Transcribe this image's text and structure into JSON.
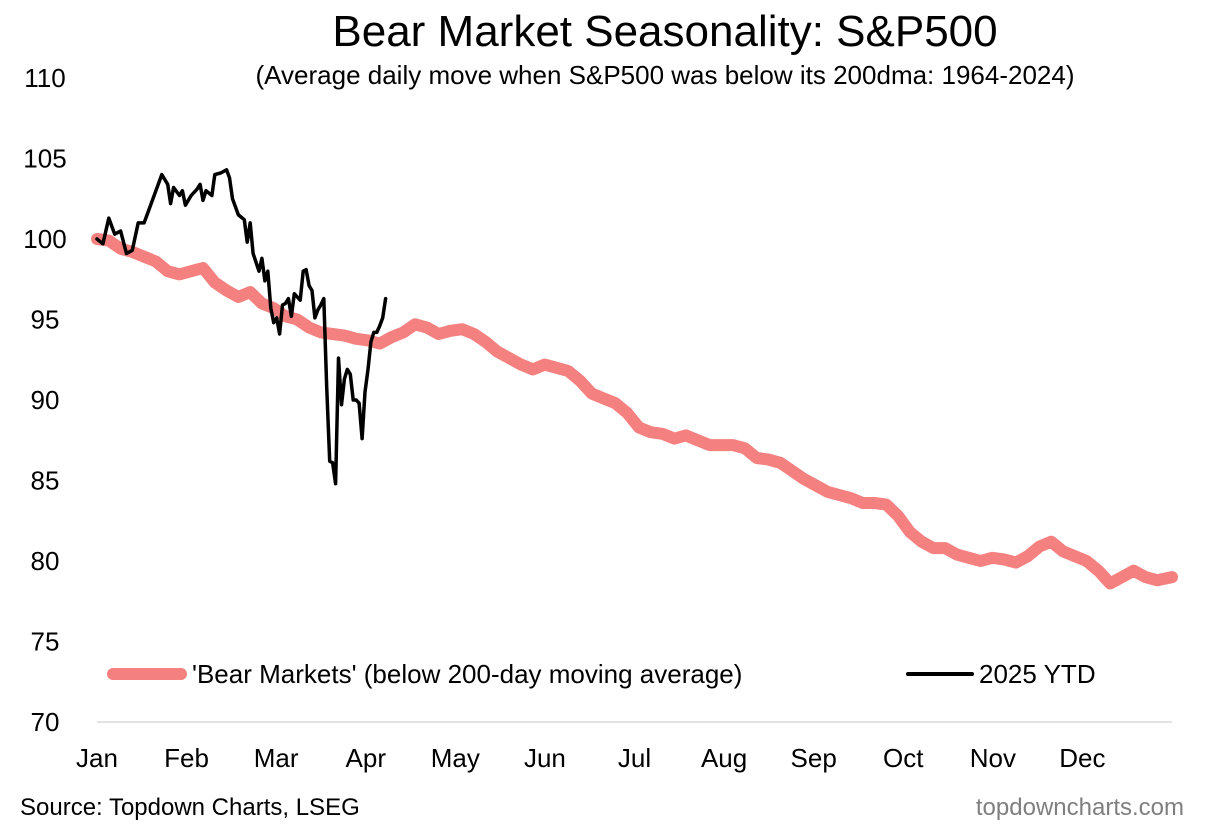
{
  "chart_data": {
    "type": "line",
    "title": "Bear Market Seasonality: S&P500",
    "subtitle": "(Average daily move when S&P500 was below its 200dma: 1964-2024)",
    "xlabel": "",
    "ylabel": "",
    "ylim": [
      70,
      110
    ],
    "yticks": [
      "70",
      "75",
      "80",
      "85",
      "90",
      "95",
      "100",
      "105",
      "110"
    ],
    "xticks": [
      "Jan",
      "Feb",
      "Mar",
      "Apr",
      "May",
      "Jun",
      "Jul",
      "Aug",
      "Sep",
      "Oct",
      "Nov",
      "Dec"
    ],
    "x_unit": "day of year (0 = Jan 1)",
    "xlim": [
      0,
      365
    ],
    "grid": false,
    "legend_position": "bottom",
    "series": [
      {
        "name": "'Bear Markets' (below 200-day moving average)",
        "color": "#f4817f",
        "style": "thick",
        "points": [
          [
            0,
            100
          ],
          [
            4,
            99.9
          ],
          [
            8,
            99.4
          ],
          [
            12,
            99.2
          ],
          [
            16,
            98.9
          ],
          [
            20,
            98.6
          ],
          [
            24,
            98.0
          ],
          [
            28,
            97.8
          ],
          [
            32,
            98.0
          ],
          [
            36,
            98.2
          ],
          [
            40,
            97.3
          ],
          [
            44,
            96.8
          ],
          [
            48,
            96.4
          ],
          [
            52,
            96.7
          ],
          [
            56,
            96.0
          ],
          [
            60,
            95.7
          ],
          [
            64,
            95.2
          ],
          [
            68,
            95.0
          ],
          [
            72,
            94.5
          ],
          [
            76,
            94.2
          ],
          [
            80,
            94.1
          ],
          [
            84,
            94.0
          ],
          [
            88,
            93.8
          ],
          [
            92,
            93.7
          ],
          [
            96,
            93.5
          ],
          [
            100,
            93.9
          ],
          [
            104,
            94.2
          ],
          [
            108,
            94.7
          ],
          [
            112,
            94.5
          ],
          [
            116,
            94.1
          ],
          [
            120,
            94.3
          ],
          [
            124,
            94.4
          ],
          [
            128,
            94.1
          ],
          [
            132,
            93.6
          ],
          [
            136,
            93.0
          ],
          [
            140,
            92.6
          ],
          [
            144,
            92.2
          ],
          [
            148,
            91.9
          ],
          [
            152,
            92.2
          ],
          [
            156,
            92.0
          ],
          [
            160,
            91.8
          ],
          [
            164,
            91.2
          ],
          [
            168,
            90.4
          ],
          [
            172,
            90.1
          ],
          [
            176,
            89.8
          ],
          [
            180,
            89.2
          ],
          [
            184,
            88.3
          ],
          [
            188,
            88.0
          ],
          [
            192,
            87.9
          ],
          [
            196,
            87.6
          ],
          [
            200,
            87.8
          ],
          [
            204,
            87.5
          ],
          [
            208,
            87.2
          ],
          [
            212,
            87.2
          ],
          [
            216,
            87.2
          ],
          [
            220,
            87.0
          ],
          [
            224,
            86.4
          ],
          [
            228,
            86.3
          ],
          [
            232,
            86.1
          ],
          [
            236,
            85.6
          ],
          [
            240,
            85.1
          ],
          [
            244,
            84.7
          ],
          [
            248,
            84.3
          ],
          [
            252,
            84.1
          ],
          [
            256,
            83.9
          ],
          [
            260,
            83.6
          ],
          [
            264,
            83.6
          ],
          [
            268,
            83.5
          ],
          [
            272,
            82.8
          ],
          [
            276,
            81.8
          ],
          [
            280,
            81.2
          ],
          [
            284,
            80.8
          ],
          [
            288,
            80.8
          ],
          [
            292,
            80.4
          ],
          [
            296,
            80.2
          ],
          [
            300,
            80.0
          ],
          [
            304,
            80.2
          ],
          [
            308,
            80.1
          ],
          [
            312,
            79.9
          ],
          [
            316,
            80.3
          ],
          [
            320,
            80.9
          ],
          [
            324,
            81.2
          ],
          [
            328,
            80.6
          ],
          [
            332,
            80.3
          ],
          [
            336,
            80.0
          ],
          [
            340,
            79.4
          ],
          [
            344,
            78.6
          ],
          [
            348,
            79.0
          ],
          [
            352,
            79.4
          ],
          [
            356,
            79.0
          ],
          [
            360,
            78.8
          ],
          [
            365,
            79.0
          ]
        ]
      },
      {
        "name": "2025 YTD",
        "color": "#000000",
        "style": "thin",
        "points": [
          [
            0,
            100
          ],
          [
            2,
            99.7
          ],
          [
            4,
            101.3
          ],
          [
            6,
            100.3
          ],
          [
            8,
            100.5
          ],
          [
            10,
            99.1
          ],
          [
            12,
            99.3
          ],
          [
            14,
            101.0
          ],
          [
            16,
            101.0
          ],
          [
            18,
            102.0
          ],
          [
            20,
            103.0
          ],
          [
            22,
            104.0
          ],
          [
            24,
            103.4
          ],
          [
            25,
            102.2
          ],
          [
            26,
            103.2
          ],
          [
            28,
            102.7
          ],
          [
            29,
            103.0
          ],
          [
            30,
            102.1
          ],
          [
            32,
            102.7
          ],
          [
            34,
            103.1
          ],
          [
            35,
            103.4
          ],
          [
            36,
            102.4
          ],
          [
            37,
            103.0
          ],
          [
            39,
            102.7
          ],
          [
            40,
            104.0
          ],
          [
            42,
            104.1
          ],
          [
            44,
            104.3
          ],
          [
            45,
            103.8
          ],
          [
            46,
            102.5
          ],
          [
            48,
            101.5
          ],
          [
            50,
            101.2
          ],
          [
            51,
            99.8
          ],
          [
            52,
            101.0
          ],
          [
            53,
            99.1
          ],
          [
            55,
            98.0
          ],
          [
            56,
            98.8
          ],
          [
            57,
            97.4
          ],
          [
            58,
            98.0
          ],
          [
            59,
            95.7
          ],
          [
            60,
            94.8
          ],
          [
            61,
            95.1
          ],
          [
            62,
            94.1
          ],
          [
            63,
            95.9
          ],
          [
            64,
            96.0
          ],
          [
            65,
            96.3
          ],
          [
            66,
            95.2
          ],
          [
            67,
            96.6
          ],
          [
            68,
            96.4
          ],
          [
            69,
            96.2
          ],
          [
            70,
            98.0
          ],
          [
            71,
            98.1
          ],
          [
            72,
            97.1
          ],
          [
            73,
            96.8
          ],
          [
            74,
            95.1
          ],
          [
            75,
            95.6
          ],
          [
            76,
            95.9
          ],
          [
            77,
            96.3
          ],
          [
            78,
            90.8
          ],
          [
            79,
            86.2
          ],
          [
            80,
            86.1
          ],
          [
            81,
            84.8
          ],
          [
            82,
            92.6
          ],
          [
            83,
            89.7
          ],
          [
            84,
            91.3
          ],
          [
            85,
            91.9
          ],
          [
            86,
            91.6
          ],
          [
            87,
            90.0
          ],
          [
            88,
            90.0
          ],
          [
            89,
            89.8
          ],
          [
            90,
            87.6
          ],
          [
            91,
            90.5
          ],
          [
            92,
            91.9
          ],
          [
            93,
            93.6
          ],
          [
            94,
            94.2
          ],
          [
            95,
            94.2
          ],
          [
            96,
            94.6
          ],
          [
            97,
            95.1
          ],
          [
            98,
            96.3
          ]
        ]
      }
    ]
  },
  "source": "Source: Topdown Charts, LSEG",
  "brand": "topdowncharts.com"
}
